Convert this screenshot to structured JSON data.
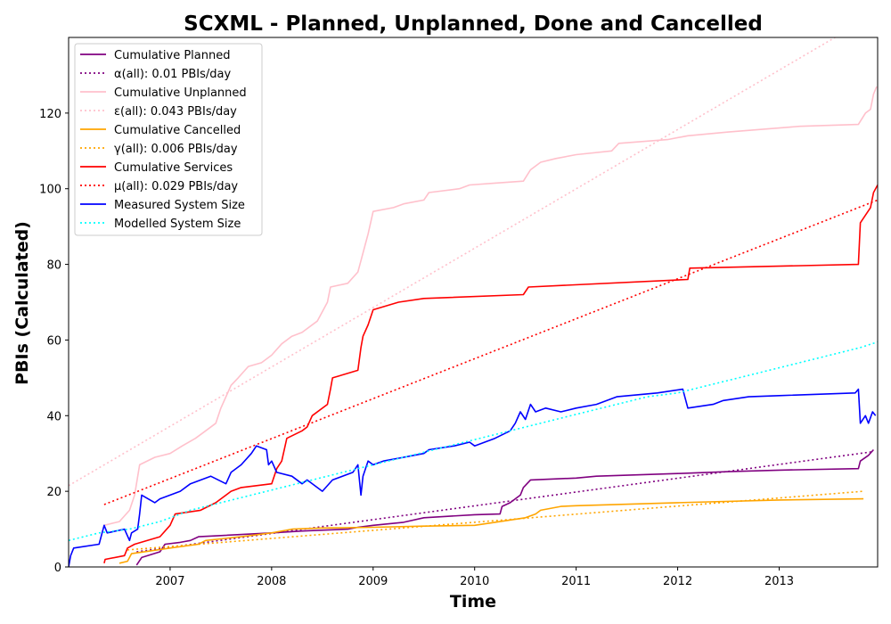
{
  "chart_data": {
    "type": "line",
    "title": "SCXML - Planned, Unplanned, Done  and Cancelled",
    "xlabel": "Time",
    "ylabel": "PBIs (Calculated)",
    "xlim": [
      2006.0,
      2013.97
    ],
    "ylim": [
      0,
      140
    ],
    "xticks": [
      2007,
      2008,
      2009,
      2010,
      2011,
      2012,
      2013
    ],
    "yticks": [
      0,
      20,
      40,
      60,
      80,
      100,
      120
    ],
    "grid": false,
    "legend_position": "top-left",
    "series": [
      {
        "name": "Cumulative Planned",
        "color": "#800080",
        "style": "solid",
        "points": [
          [
            2006.67,
            0.5
          ],
          [
            2006.72,
            2.5
          ],
          [
            2006.9,
            4
          ],
          [
            2006.95,
            6
          ],
          [
            2007.1,
            6.5
          ],
          [
            2007.2,
            7
          ],
          [
            2007.28,
            8
          ],
          [
            2007.5,
            8.3
          ],
          [
            2008.0,
            9
          ],
          [
            2008.3,
            9.5
          ],
          [
            2008.75,
            10
          ],
          [
            2008.85,
            10.5
          ],
          [
            2009.0,
            11
          ],
          [
            2009.3,
            11.8
          ],
          [
            2009.5,
            13
          ],
          [
            2010.0,
            13.8
          ],
          [
            2010.25,
            14
          ],
          [
            2010.27,
            16
          ],
          [
            2010.35,
            17
          ],
          [
            2010.45,
            19
          ],
          [
            2010.48,
            21
          ],
          [
            2010.55,
            23
          ],
          [
            2011.0,
            23.5
          ],
          [
            2011.2,
            24
          ],
          [
            2012.0,
            24.7
          ],
          [
            2012.5,
            25.2
          ],
          [
            2013.0,
            25.6
          ],
          [
            2013.78,
            26
          ],
          [
            2013.8,
            28
          ],
          [
            2013.88,
            29.5
          ],
          [
            2013.93,
            31
          ]
        ]
      },
      {
        "name": "α(all): 0.01 PBIs/day",
        "color": "#800080",
        "style": "dotted",
        "points": [
          [
            2006.67,
            4
          ],
          [
            2013.93,
            30.5
          ]
        ]
      },
      {
        "name": "Cumulative Unplanned",
        "color": "#ffc0cb",
        "style": "solid",
        "points": [
          [
            2006.35,
            11
          ],
          [
            2006.5,
            12
          ],
          [
            2006.6,
            15
          ],
          [
            2006.65,
            19
          ],
          [
            2006.7,
            27
          ],
          [
            2006.85,
            29
          ],
          [
            2007.0,
            30
          ],
          [
            2007.12,
            32
          ],
          [
            2007.25,
            34
          ],
          [
            2007.35,
            36
          ],
          [
            2007.45,
            38
          ],
          [
            2007.5,
            42
          ],
          [
            2007.6,
            48
          ],
          [
            2007.67,
            50
          ],
          [
            2007.77,
            53
          ],
          [
            2007.9,
            54
          ],
          [
            2008.0,
            56
          ],
          [
            2008.1,
            59
          ],
          [
            2008.2,
            61
          ],
          [
            2008.3,
            62
          ],
          [
            2008.45,
            65
          ],
          [
            2008.55,
            70
          ],
          [
            2008.58,
            74
          ],
          [
            2008.75,
            75
          ],
          [
            2008.85,
            78
          ],
          [
            2008.9,
            83
          ],
          [
            2008.95,
            88
          ],
          [
            2009.0,
            94
          ],
          [
            2009.2,
            95
          ],
          [
            2009.3,
            96
          ],
          [
            2009.5,
            97
          ],
          [
            2009.55,
            99
          ],
          [
            2009.85,
            100
          ],
          [
            2009.95,
            101
          ],
          [
            2010.2,
            101.5
          ],
          [
            2010.48,
            102
          ],
          [
            2010.55,
            105
          ],
          [
            2010.65,
            107
          ],
          [
            2010.8,
            108
          ],
          [
            2011.0,
            109
          ],
          [
            2011.35,
            110
          ],
          [
            2011.42,
            112
          ],
          [
            2011.9,
            113
          ],
          [
            2012.1,
            114
          ],
          [
            2012.5,
            115
          ],
          [
            2013.2,
            116.5
          ],
          [
            2013.78,
            117
          ],
          [
            2013.85,
            120
          ],
          [
            2013.9,
            121
          ],
          [
            2013.93,
            125
          ],
          [
            2013.96,
            127
          ]
        ]
      },
      {
        "name": "ε(all): 0.043 PBIs/day",
        "color": "#ffc0cb",
        "style": "dotted",
        "points": [
          [
            2006.0,
            21.5
          ],
          [
            2013.55,
            140
          ]
        ]
      },
      {
        "name": "Cumulative Cancelled",
        "color": "#ffa500",
        "style": "solid",
        "points": [
          [
            2006.5,
            1
          ],
          [
            2006.58,
            1.5
          ],
          [
            2006.62,
            3.5
          ],
          [
            2007.0,
            5
          ],
          [
            2007.28,
            6
          ],
          [
            2007.35,
            7
          ],
          [
            2007.7,
            8
          ],
          [
            2008.0,
            9
          ],
          [
            2008.2,
            10
          ],
          [
            2008.5,
            10.3
          ],
          [
            2009.0,
            10.5
          ],
          [
            2009.5,
            10.8
          ],
          [
            2010.0,
            11
          ],
          [
            2010.2,
            11.8
          ],
          [
            2010.5,
            13
          ],
          [
            2010.6,
            14
          ],
          [
            2010.65,
            15
          ],
          [
            2010.85,
            16
          ],
          [
            2011.0,
            16.2
          ],
          [
            2012.0,
            17
          ],
          [
            2013.0,
            17.7
          ],
          [
            2013.83,
            18
          ]
        ]
      },
      {
        "name": "γ(all): 0.006 PBIs/day",
        "color": "#ffa500",
        "style": "dotted",
        "points": [
          [
            2006.58,
            4.5
          ],
          [
            2013.83,
            20
          ]
        ]
      },
      {
        "name": "Cumulative Services",
        "color": "#ff0000",
        "style": "solid",
        "points": [
          [
            2006.35,
            1
          ],
          [
            2006.36,
            2
          ],
          [
            2006.55,
            3
          ],
          [
            2006.58,
            5
          ],
          [
            2006.65,
            6
          ],
          [
            2006.9,
            8
          ],
          [
            2007.0,
            11
          ],
          [
            2007.05,
            14
          ],
          [
            2007.3,
            15
          ],
          [
            2007.45,
            17
          ],
          [
            2007.6,
            20
          ],
          [
            2007.7,
            21
          ],
          [
            2008.0,
            22
          ],
          [
            2008.05,
            26
          ],
          [
            2008.1,
            28
          ],
          [
            2008.15,
            34
          ],
          [
            2008.3,
            36
          ],
          [
            2008.35,
            37
          ],
          [
            2008.4,
            40
          ],
          [
            2008.55,
            43
          ],
          [
            2008.58,
            47
          ],
          [
            2008.6,
            50
          ],
          [
            2008.85,
            52
          ],
          [
            2008.88,
            58
          ],
          [
            2008.9,
            61
          ],
          [
            2008.95,
            64
          ],
          [
            2009.0,
            68
          ],
          [
            2009.25,
            70
          ],
          [
            2009.5,
            71
          ],
          [
            2010.48,
            72
          ],
          [
            2010.53,
            74
          ],
          [
            2012.1,
            76
          ],
          [
            2012.12,
            79
          ],
          [
            2013.78,
            80
          ],
          [
            2013.8,
            91
          ],
          [
            2013.85,
            93
          ],
          [
            2013.9,
            95
          ],
          [
            2013.93,
            99
          ],
          [
            2013.97,
            101
          ]
        ]
      },
      {
        "name": "μ(all): 0.029 PBIs/day",
        "color": "#ff0000",
        "style": "dotted",
        "points": [
          [
            2006.35,
            16.5
          ],
          [
            2013.97,
            97
          ]
        ]
      },
      {
        "name": "Measured System Size",
        "color": "#0000ff",
        "style": "solid",
        "points": [
          [
            2006.0,
            0
          ],
          [
            2006.02,
            3
          ],
          [
            2006.05,
            5
          ],
          [
            2006.3,
            6
          ],
          [
            2006.33,
            9
          ],
          [
            2006.35,
            11
          ],
          [
            2006.38,
            9
          ],
          [
            2006.55,
            10
          ],
          [
            2006.6,
            7
          ],
          [
            2006.62,
            9
          ],
          [
            2006.68,
            10
          ],
          [
            2006.7,
            14
          ],
          [
            2006.72,
            19
          ],
          [
            2006.85,
            17
          ],
          [
            2006.9,
            18
          ],
          [
            2007.1,
            20
          ],
          [
            2007.2,
            22
          ],
          [
            2007.4,
            24
          ],
          [
            2007.55,
            22
          ],
          [
            2007.6,
            25
          ],
          [
            2007.7,
            27
          ],
          [
            2007.8,
            30
          ],
          [
            2007.85,
            32
          ],
          [
            2007.95,
            31
          ],
          [
            2007.97,
            27
          ],
          [
            2008.0,
            28
          ],
          [
            2008.05,
            25
          ],
          [
            2008.2,
            24
          ],
          [
            2008.3,
            22
          ],
          [
            2008.35,
            23
          ],
          [
            2008.5,
            20
          ],
          [
            2008.6,
            23
          ],
          [
            2008.8,
            25
          ],
          [
            2008.85,
            27
          ],
          [
            2008.88,
            19
          ],
          [
            2008.9,
            24
          ],
          [
            2008.95,
            28
          ],
          [
            2009.0,
            27
          ],
          [
            2009.1,
            28
          ],
          [
            2009.3,
            29
          ],
          [
            2009.5,
            30
          ],
          [
            2009.55,
            31
          ],
          [
            2009.8,
            32
          ],
          [
            2009.95,
            33
          ],
          [
            2010.0,
            32
          ],
          [
            2010.2,
            34
          ],
          [
            2010.35,
            36
          ],
          [
            2010.4,
            38
          ],
          [
            2010.45,
            41
          ],
          [
            2010.5,
            39
          ],
          [
            2010.55,
            43
          ],
          [
            2010.6,
            41
          ],
          [
            2010.7,
            42
          ],
          [
            2010.85,
            41
          ],
          [
            2011.0,
            42
          ],
          [
            2011.2,
            43
          ],
          [
            2011.4,
            45
          ],
          [
            2011.8,
            46
          ],
          [
            2012.05,
            47
          ],
          [
            2012.1,
            42
          ],
          [
            2012.35,
            43
          ],
          [
            2012.45,
            44
          ],
          [
            2012.7,
            45
          ],
          [
            2013.0,
            45.3
          ],
          [
            2013.75,
            46
          ],
          [
            2013.78,
            47
          ],
          [
            2013.8,
            38
          ],
          [
            2013.85,
            40
          ],
          [
            2013.88,
            38
          ],
          [
            2013.92,
            41
          ],
          [
            2013.95,
            40
          ]
        ]
      },
      {
        "name": "Modelled System Size",
        "color": "#00ffff",
        "style": "dotted",
        "points": [
          [
            2006.0,
            7
          ],
          [
            2006.3,
            9
          ],
          [
            2006.6,
            10
          ],
          [
            2006.9,
            12
          ],
          [
            2007.2,
            15
          ],
          [
            2007.5,
            17
          ],
          [
            2007.8,
            19
          ],
          [
            2008.1,
            21
          ],
          [
            2008.4,
            23
          ],
          [
            2008.7,
            25
          ],
          [
            2009.0,
            27
          ],
          [
            2009.3,
            29
          ],
          [
            2009.6,
            31
          ],
          [
            2009.9,
            33
          ],
          [
            2010.2,
            35
          ],
          [
            2010.5,
            37
          ],
          [
            2010.8,
            39
          ],
          [
            2011.1,
            41
          ],
          [
            2011.4,
            43
          ],
          [
            2011.7,
            45
          ],
          [
            2012.0,
            46
          ],
          [
            2012.3,
            48
          ],
          [
            2012.6,
            50
          ],
          [
            2012.9,
            52
          ],
          [
            2013.2,
            54
          ],
          [
            2013.5,
            56
          ],
          [
            2013.8,
            58
          ],
          [
            2013.97,
            59.5
          ]
        ]
      }
    ]
  }
}
